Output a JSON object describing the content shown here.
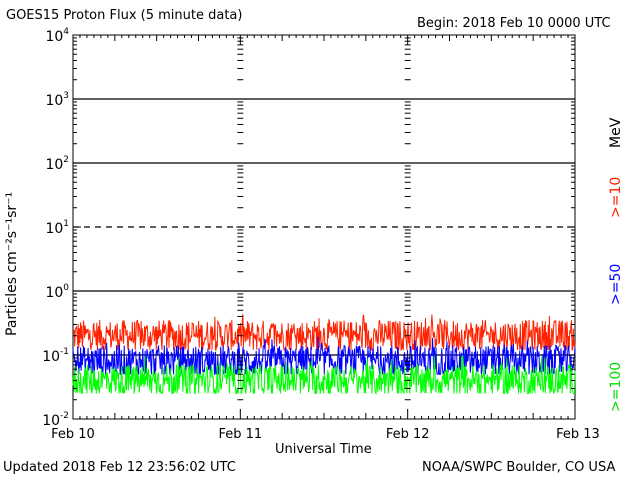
{
  "header": {
    "title": "GOES15 Proton Flux (5 minute data)",
    "begin": "Begin: 2018 Feb 10 0000 UTC"
  },
  "footer": {
    "updated": "Updated 2018 Feb 12 23:56:02 UTC",
    "credit": "NOAA/SWPC Boulder, CO USA"
  },
  "chart_data": {
    "type": "line",
    "title": "GOES15 Proton Flux (5 minute data)",
    "xlabel": "Universal Time",
    "ylabel": "Particles cm⁻²s⁻¹sr⁻¹",
    "yscale": "log",
    "ylim": [
      0.01,
      10000
    ],
    "y_ticks": [
      {
        "value": 0.01,
        "base": "10",
        "exp": "-2"
      },
      {
        "value": 0.1,
        "base": "10",
        "exp": "-1"
      },
      {
        "value": 1,
        "base": "10",
        "exp": "0"
      },
      {
        "value": 10,
        "base": "10",
        "exp": "1"
      },
      {
        "value": 100,
        "base": "10",
        "exp": "2"
      },
      {
        "value": 1000,
        "base": "10",
        "exp": "3"
      },
      {
        "value": 10000,
        "base": "10",
        "exp": "4"
      }
    ],
    "x_ticks": [
      "Feb 10",
      "Feb 11",
      "Feb 12",
      "Feb 13"
    ],
    "xlim": [
      "2018-02-10",
      "2018-02-13"
    ],
    "unit_label": "MeV",
    "series": [
      {
        "name": ">=10",
        "color": "#ff2200",
        "typical": 0.2,
        "min": 0.12,
        "max": 0.45
      },
      {
        "name": ">=50",
        "color": "#0000ff",
        "typical": 0.08,
        "min": 0.05,
        "max": 0.2
      },
      {
        "name": ">=100",
        "color": "#00ff00",
        "typical": 0.04,
        "min": 0.025,
        "max": 0.1
      }
    ],
    "reference_lines": [
      {
        "value": 10,
        "style": "dashed"
      },
      {
        "value": 1,
        "style": "solid"
      },
      {
        "value": 100,
        "style": "solid"
      },
      {
        "value": 1000,
        "style": "solid"
      },
      {
        "value": 0.1,
        "style": "solid"
      }
    ]
  }
}
